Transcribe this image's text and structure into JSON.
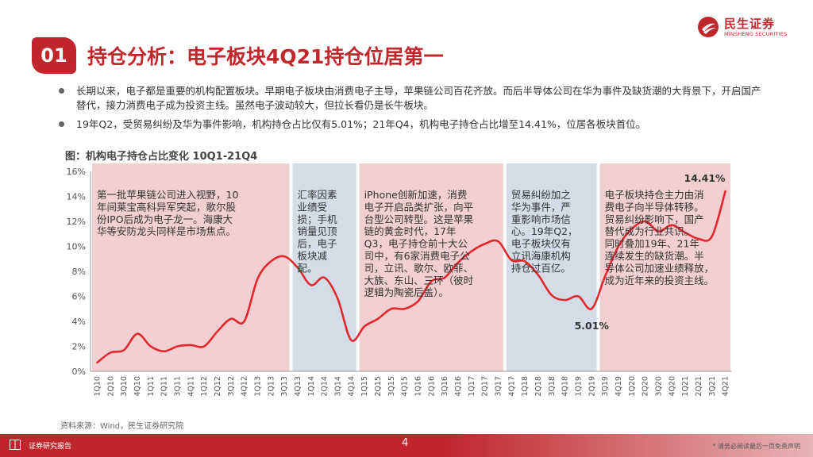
{
  "header": {
    "badge": "01",
    "title": "持仓分析：电子板块4Q21持仓位居第一",
    "logo_cn": "民生证券",
    "logo_en": "MINSHENG SECURITIES"
  },
  "bullets": [
    "长期以来，电子都是重要的机构配置板块。早期电子板块由消费电子主导，苹果链公司百花齐放。而后半导体公司在华为事件及缺货潮的大背景下，开启国产替代，接力消费电子成为投资主线。虽然电子波动较大，但拉长看仍是长牛板块。",
    "19年Q2，受贸易纠纷及华为事件影响，机构持仓占比仅有5.01%；21年Q4，机构电子持仓占比增至14.41%，位居各板块首位。"
  ],
  "chart_title": "图：机构电子持仓占比变化  10Q1-21Q4",
  "source": "资料来源：Wind，民生证券研究院",
  "footer": {
    "label": "证券研究报告",
    "page": "4",
    "disclaimer": "* 请务必阅读最后一页免责声明"
  },
  "colors": {
    "brand": "#c0272d",
    "line": "#e0282e",
    "pink_band": "#f2cfd1",
    "blue_band": "#d4dde7"
  },
  "chart_data": {
    "type": "line",
    "title": "图：机构电子持仓占比变化  10Q1-21Q4",
    "ylim": [
      0,
      16
    ],
    "yticks": [
      "0%",
      "2%",
      "4%",
      "6%",
      "8%",
      "10%",
      "12%",
      "14%",
      "16%"
    ],
    "grid": false,
    "categories": [
      "1Q10",
      "2Q10",
      "3Q10",
      "4Q10",
      "1Q11",
      "2Q11",
      "3Q11",
      "4Q11",
      "1Q12",
      "2Q12",
      "3Q12",
      "4Q12",
      "1Q13",
      "2Q13",
      "3Q13",
      "4Q13",
      "1Q14",
      "2Q14",
      "3Q14",
      "4Q14",
      "1Q15",
      "2Q15",
      "3Q15",
      "4Q15",
      "1Q16",
      "2Q16",
      "3Q16",
      "4Q16",
      "1Q17",
      "2Q17",
      "3Q17",
      "4Q17",
      "1Q18",
      "2Q18",
      "3Q18",
      "4Q18",
      "1Q19",
      "2Q19",
      "3Q19",
      "4Q19",
      "1Q20",
      "2Q20",
      "3Q20",
      "4Q20",
      "1Q21",
      "2Q21",
      "3Q21",
      "4Q21"
    ],
    "values": [
      0.7,
      1.5,
      1.7,
      3.0,
      2.0,
      1.6,
      2.0,
      2.1,
      2.0,
      3.2,
      4.2,
      4.0,
      7.4,
      8.8,
      9.2,
      8.3,
      6.9,
      7.5,
      5.8,
      2.5,
      3.6,
      4.2,
      5.0,
      5.0,
      5.6,
      7.2,
      7.5,
      8.7,
      9.6,
      10.2,
      10.4,
      8.9,
      8.8,
      7.7,
      6.1,
      5.7,
      6.0,
      5.01,
      7.6,
      10.0,
      11.4,
      12.0,
      11.2,
      11.7,
      11.1,
      10.6,
      10.8,
      14.41
    ],
    "data_labels": [
      {
        "index": 37,
        "text": "5.01%"
      },
      {
        "index": 47,
        "text": "14.41%"
      }
    ],
    "bands": [
      {
        "start": 0,
        "end": 14,
        "color": "pink",
        "text": [
          "第一批苹果链公司进入视野，10",
          "年间莱宝高科异军突起，歌尔股",
          "份IPO后成为电子龙一。海康大",
          "华等安防龙头同样是市场焦点。"
        ]
      },
      {
        "start": 15,
        "end": 19,
        "color": "blue",
        "text": [
          "汇率因素",
          "业绩受",
          "损；手机",
          "销量见顶",
          "后，电子",
          "板块减",
          "配。"
        ]
      },
      {
        "start": 20,
        "end": 30,
        "color": "pink",
        "text": [
          "iPhone创新加速，消费",
          "电子开启品类扩张，向平",
          "台型公司转型。这是苹果",
          "链的黄金时代，17年",
          "Q3，电子持仓前十大公",
          "司中，有6家消费电子公",
          "司，立讯、歌尔、欧菲、",
          "大族、东山、三环（彼时",
          "逻辑为陶瓷后盖）。"
        ]
      },
      {
        "start": 31,
        "end": 37,
        "color": "blue",
        "text": [
          "贸易纠纷加之",
          "华为事件，严",
          "重影响市场信",
          "心。19年Q2，",
          "电子板块仅有",
          "立讯海康机构",
          "持仓过百亿。"
        ]
      },
      {
        "start": 38,
        "end": 47,
        "color": "pink",
        "text": [
          "电子板块持仓主力由消",
          "费电子向半导体转移。",
          "贸易纠纷影响下，国产",
          "替代成为行业共识。",
          "同时叠加19年、21年",
          "连续发生的缺货潮。半",
          "导体公司加速业绩释放，",
          "成为近年来的投资主线。"
        ]
      }
    ]
  }
}
